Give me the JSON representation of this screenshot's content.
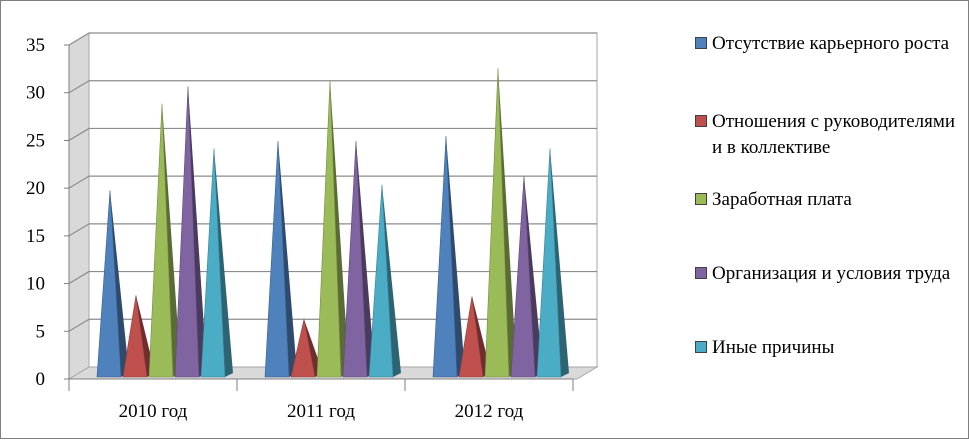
{
  "chart_data": {
    "type": "bar",
    "style": "3d-pyramid",
    "categories": [
      "2010 год",
      "2011 год",
      "2012 год"
    ],
    "series": [
      {
        "name": "Отсутствие карьерного роста",
        "color": "#4f81bd",
        "values": [
          18.5,
          23.7,
          24.2
        ]
      },
      {
        "name": "Отношения с руководителями и в коллективе",
        "color": "#c0504d",
        "values": [
          7.5,
          5.0,
          7.4
        ]
      },
      {
        "name": "Заработная плата",
        "color": "#9bbb59",
        "values": [
          27.6,
          30.0,
          31.3
        ]
      },
      {
        "name": "Организация и условия труда",
        "color": "#8064a2",
        "values": [
          29.4,
          23.7,
          20.0
        ]
      },
      {
        "name": "Иные причины",
        "color": "#4bacc6",
        "values": [
          22.9,
          19.1,
          22.9
        ]
      }
    ],
    "y_ticks": [
      "0",
      "5",
      "10",
      "15",
      "20",
      "25",
      "30",
      "35"
    ],
    "ylim": [
      0,
      35
    ],
    "grid": true,
    "legend_position": "right"
  }
}
